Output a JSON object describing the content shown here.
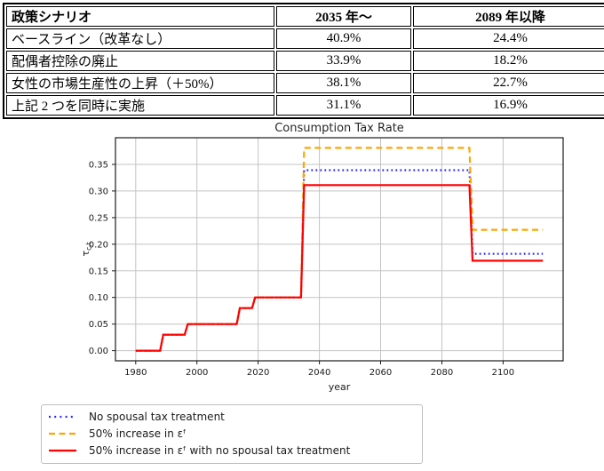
{
  "table": {
    "headers": [
      "政策シナリオ",
      "2035 年～",
      "2089 年以降"
    ],
    "rows": [
      [
        "ベースライン（改革なし）",
        "40.9%",
        "24.4%"
      ],
      [
        "配偶者控除の廃止",
        "33.9%",
        "18.2%"
      ],
      [
        "女性の市場生産性の上昇（＋50%）",
        "38.1%",
        "22.7%"
      ],
      [
        "上記 2 つを同時に実施",
        "31.1%",
        "16.9%"
      ]
    ]
  },
  "chart_data": {
    "type": "line",
    "title": "Consumption Tax Rate",
    "xlabel": "year",
    "ylabel_base": "τ",
    "ylabel_sub": "c,t",
    "xlim": [
      1973.4,
      2119.6
    ],
    "ylim": [
      -0.019,
      0.4
    ],
    "xticks": [
      1980,
      2000,
      2020,
      2040,
      2060,
      2080,
      2100
    ],
    "yticks": [
      0.0,
      0.05,
      0.1,
      0.15,
      0.2,
      0.25,
      0.3,
      0.35
    ],
    "grid": true,
    "grid_color": "#c3c3c3",
    "legend_position": "below-left",
    "series": [
      {
        "name": "No spousal tax treatment",
        "color": "#2a2aff",
        "style": "dotted",
        "points": [
          [
            1980,
            0.0
          ],
          [
            1988,
            0.0
          ],
          [
            1989,
            0.03
          ],
          [
            1996,
            0.03
          ],
          [
            1997,
            0.05
          ],
          [
            2013,
            0.05
          ],
          [
            2014,
            0.08
          ],
          [
            2018,
            0.08
          ],
          [
            2019,
            0.1
          ],
          [
            2034,
            0.1
          ],
          [
            2035,
            0.339
          ],
          [
            2089,
            0.339
          ],
          [
            2090,
            0.182
          ],
          [
            2113,
            0.182
          ]
        ]
      },
      {
        "name": "50% increase in εᶠ",
        "color": "#ffa500",
        "style": "dashed",
        "points": [
          [
            1980,
            0.0
          ],
          [
            1988,
            0.0
          ],
          [
            1989,
            0.03
          ],
          [
            1996,
            0.03
          ],
          [
            1997,
            0.05
          ],
          [
            2013,
            0.05
          ],
          [
            2014,
            0.08
          ],
          [
            2018,
            0.08
          ],
          [
            2019,
            0.1
          ],
          [
            2034,
            0.1
          ],
          [
            2035,
            0.381
          ],
          [
            2089,
            0.381
          ],
          [
            2090,
            0.227
          ],
          [
            2113,
            0.227
          ]
        ]
      },
      {
        "name": "50% increase in εᶠ  with no spousal tax treatment",
        "color": "#ff0000",
        "style": "solid",
        "points": [
          [
            1980,
            0.0
          ],
          [
            1988,
            0.0
          ],
          [
            1989,
            0.03
          ],
          [
            1996,
            0.03
          ],
          [
            1997,
            0.05
          ],
          [
            2013,
            0.05
          ],
          [
            2014,
            0.08
          ],
          [
            2018,
            0.08
          ],
          [
            2019,
            0.1
          ],
          [
            2034,
            0.1
          ],
          [
            2035,
            0.311
          ],
          [
            2089,
            0.311
          ],
          [
            2090,
            0.169
          ],
          [
            2113,
            0.169
          ]
        ]
      }
    ]
  }
}
